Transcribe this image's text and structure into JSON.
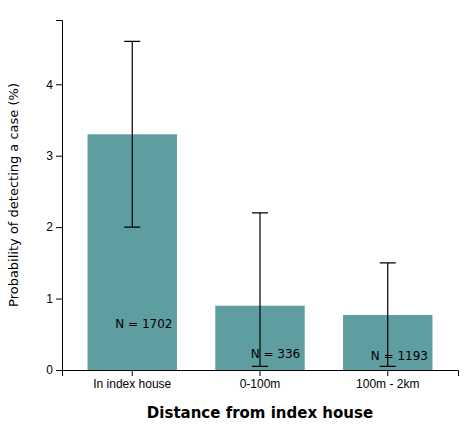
{
  "chart_data": {
    "type": "bar",
    "categories": [
      "In index house",
      "0-100m",
      "100m - 2km"
    ],
    "values": [
      3.3,
      0.9,
      0.77
    ],
    "ci_lower": [
      2.0,
      0.05,
      0.05
    ],
    "ci_upper": [
      4.6,
      2.2,
      1.5
    ],
    "annotations": [
      "N = 1702",
      "N = 336",
      "N = 1193"
    ],
    "color": "#5f9ea0",
    "xlabel": "Distance from index house",
    "ylabel": "Probability of detecting a case (%)",
    "ylim": [
      0,
      4.9
    ],
    "yticks": [
      0,
      1,
      2,
      3,
      4
    ],
    "grid": false
  }
}
